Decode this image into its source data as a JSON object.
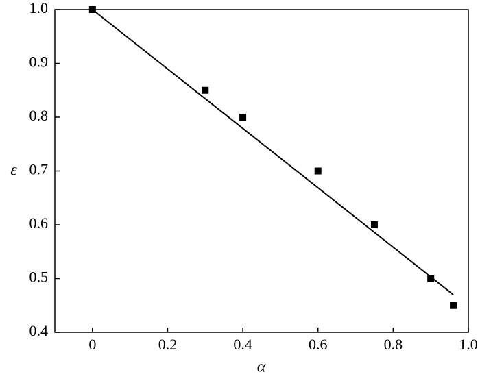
{
  "chart_data": {
    "type": "scatter",
    "xlabel": "α",
    "ylabel": "ε",
    "xlim": [
      -0.1,
      1.0
    ],
    "ylim": [
      0.4,
      1.0
    ],
    "xticks": [
      0,
      0.2,
      0.4,
      0.6,
      0.8,
      {
        "value": 1,
        "label": "1.0"
      }
    ],
    "yticks": [
      0.4,
      0.5,
      0.6,
      0.7,
      0.8,
      0.9,
      {
        "value": 1,
        "label": "1.0"
      }
    ],
    "series": [
      {
        "type": "scatter",
        "color": "#000000",
        "x": [
          0,
          0.3,
          0.4,
          0.6,
          0.75,
          0.9,
          0.96
        ],
        "values": [
          1.0,
          0.85,
          0.8,
          0.7,
          0.6,
          0.5,
          0.45
        ]
      },
      {
        "type": "line",
        "color": "#000000",
        "x": [
          0,
          0.96
        ],
        "values": [
          1.0,
          0.47
        ]
      }
    ]
  }
}
